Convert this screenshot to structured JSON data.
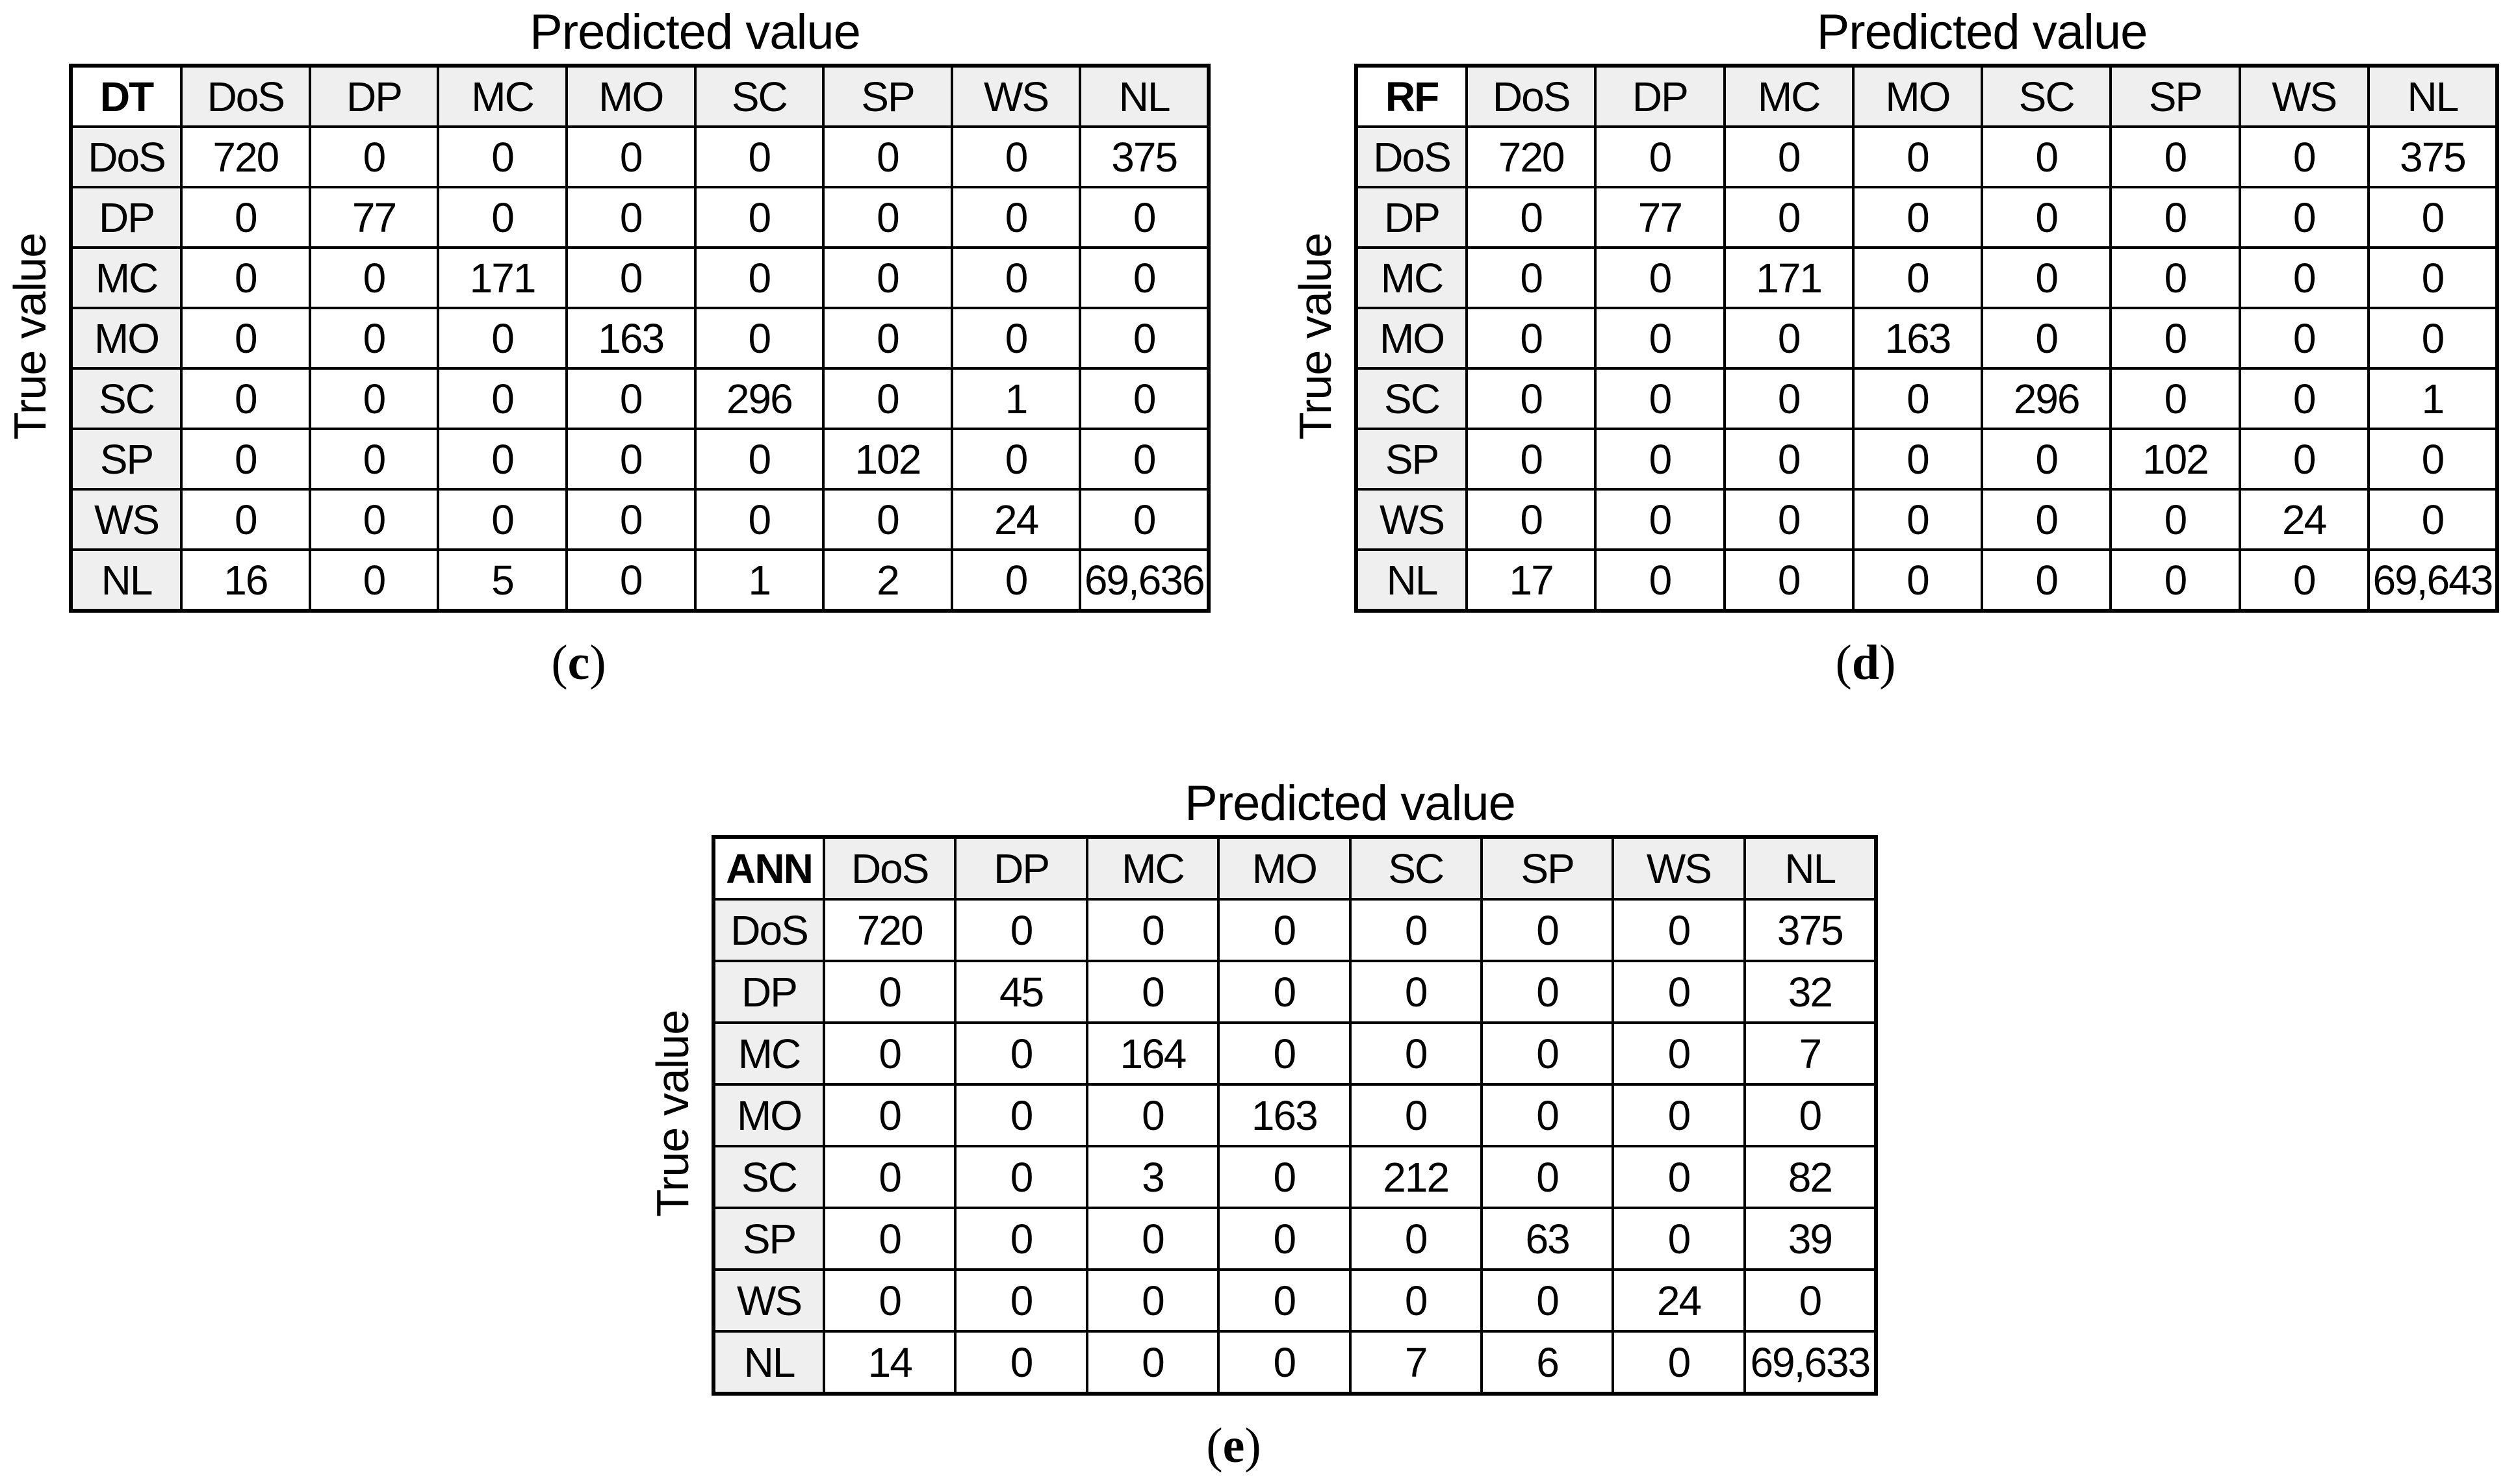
{
  "shared": {
    "predicted_label": "Predicted value",
    "true_label": "True value",
    "caption_open": "(",
    "caption_close": ")"
  },
  "tables": [
    {
      "corner": "DT",
      "caption_letter": "c",
      "columns": [
        "DoS",
        "DP",
        "MC",
        "MO",
        "SC",
        "SP",
        "WS",
        "NL"
      ],
      "rows": [
        {
          "label": "DoS",
          "values": [
            "720",
            "0",
            "0",
            "0",
            "0",
            "0",
            "0",
            "375"
          ]
        },
        {
          "label": "DP",
          "values": [
            "0",
            "77",
            "0",
            "0",
            "0",
            "0",
            "0",
            "0"
          ]
        },
        {
          "label": "MC",
          "values": [
            "0",
            "0",
            "171",
            "0",
            "0",
            "0",
            "0",
            "0"
          ]
        },
        {
          "label": "MO",
          "values": [
            "0",
            "0",
            "0",
            "163",
            "0",
            "0",
            "0",
            "0"
          ]
        },
        {
          "label": "SC",
          "values": [
            "0",
            "0",
            "0",
            "0",
            "296",
            "0",
            "1",
            "0"
          ]
        },
        {
          "label": "SP",
          "values": [
            "0",
            "0",
            "0",
            "0",
            "0",
            "102",
            "0",
            "0"
          ]
        },
        {
          "label": "WS",
          "values": [
            "0",
            "0",
            "0",
            "0",
            "0",
            "0",
            "24",
            "0"
          ]
        },
        {
          "label": "NL",
          "values": [
            "16",
            "0",
            "5",
            "0",
            "1",
            "2",
            "0",
            "69,636"
          ]
        }
      ]
    },
    {
      "corner": "RF",
      "caption_letter": "d",
      "columns": [
        "DoS",
        "DP",
        "MC",
        "MO",
        "SC",
        "SP",
        "WS",
        "NL"
      ],
      "rows": [
        {
          "label": "DoS",
          "values": [
            "720",
            "0",
            "0",
            "0",
            "0",
            "0",
            "0",
            "375"
          ]
        },
        {
          "label": "DP",
          "values": [
            "0",
            "77",
            "0",
            "0",
            "0",
            "0",
            "0",
            "0"
          ]
        },
        {
          "label": "MC",
          "values": [
            "0",
            "0",
            "171",
            "0",
            "0",
            "0",
            "0",
            "0"
          ]
        },
        {
          "label": "MO",
          "values": [
            "0",
            "0",
            "0",
            "163",
            "0",
            "0",
            "0",
            "0"
          ]
        },
        {
          "label": "SC",
          "values": [
            "0",
            "0",
            "0",
            "0",
            "296",
            "0",
            "0",
            "1"
          ]
        },
        {
          "label": "SP",
          "values": [
            "0",
            "0",
            "0",
            "0",
            "0",
            "102",
            "0",
            "0"
          ]
        },
        {
          "label": "WS",
          "values": [
            "0",
            "0",
            "0",
            "0",
            "0",
            "0",
            "24",
            "0"
          ]
        },
        {
          "label": "NL",
          "values": [
            "17",
            "0",
            "0",
            "0",
            "0",
            "0",
            "0",
            "69,643"
          ]
        }
      ]
    },
    {
      "corner": "ANN",
      "caption_letter": "e",
      "columns": [
        "DoS",
        "DP",
        "MC",
        "MO",
        "SC",
        "SP",
        "WS",
        "NL"
      ],
      "rows": [
        {
          "label": "DoS",
          "values": [
            "720",
            "0",
            "0",
            "0",
            "0",
            "0",
            "0",
            "375"
          ]
        },
        {
          "label": "DP",
          "values": [
            "0",
            "45",
            "0",
            "0",
            "0",
            "0",
            "0",
            "32"
          ]
        },
        {
          "label": "MC",
          "values": [
            "0",
            "0",
            "164",
            "0",
            "0",
            "0",
            "0",
            "7"
          ]
        },
        {
          "label": "MO",
          "values": [
            "0",
            "0",
            "0",
            "163",
            "0",
            "0",
            "0",
            "0"
          ]
        },
        {
          "label": "SC",
          "values": [
            "0",
            "0",
            "3",
            "0",
            "212",
            "0",
            "0",
            "82"
          ]
        },
        {
          "label": "SP",
          "values": [
            "0",
            "0",
            "0",
            "0",
            "0",
            "63",
            "0",
            "39"
          ]
        },
        {
          "label": "WS",
          "values": [
            "0",
            "0",
            "0",
            "0",
            "0",
            "0",
            "24",
            "0"
          ]
        },
        {
          "label": "NL",
          "values": [
            "14",
            "0",
            "0",
            "0",
            "7",
            "6",
            "0",
            "69,633"
          ]
        }
      ]
    }
  ]
}
